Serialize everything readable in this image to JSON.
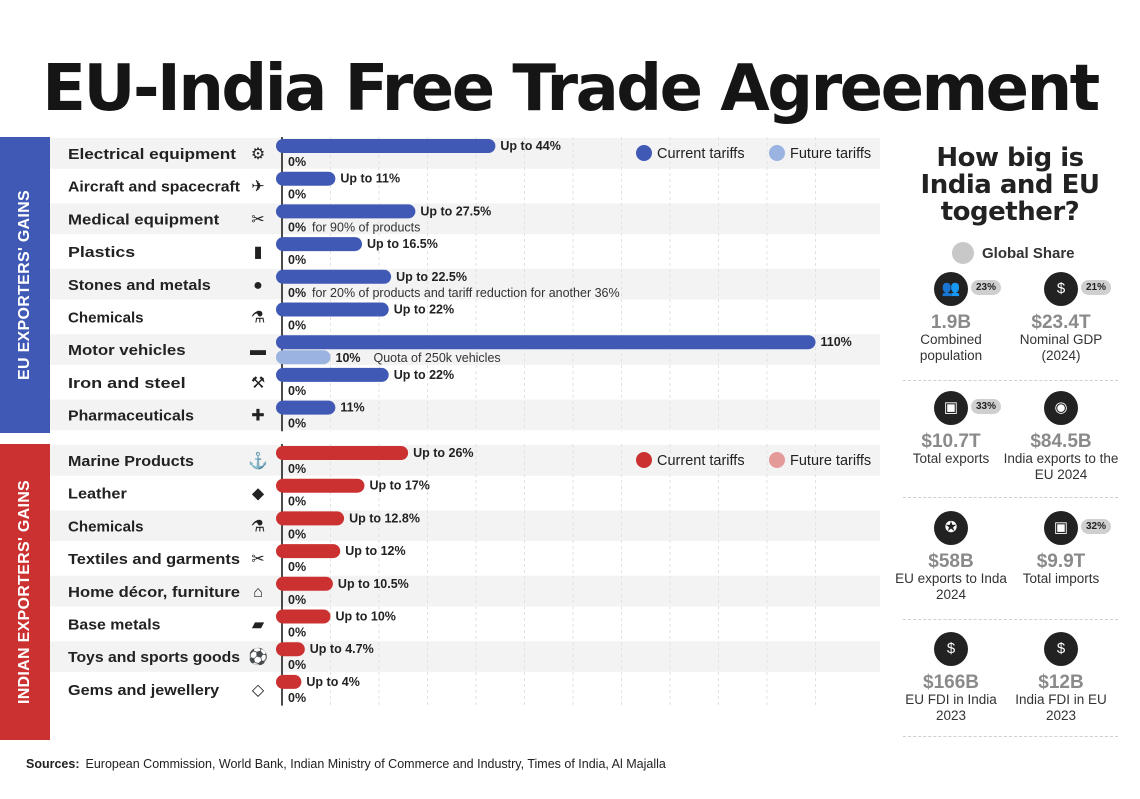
{
  "title": "EU-India Free Trade Agreement",
  "colors": {
    "eu_current": "#4059b5",
    "eu_future": "#9bb3e0",
    "in_current": "#cb3131",
    "in_future": "#e59a9a"
  },
  "chart_data": [
    {
      "type": "bar",
      "group_label": "EU EXPORTERS' GAINS",
      "legend": [
        "Current tariffs",
        "Future tariffs"
      ],
      "categories": [
        "Electrical equipment",
        "Aircraft and spacecraft",
        "Medical  equipment",
        "Plastics",
        "Stones and metals",
        "Chemicals",
        "Motor vehicles",
        "Iron and steel",
        "Pharmaceuticals"
      ],
      "icons": [
        "gear-icon",
        "airplane-icon",
        "medical-tools-icon",
        "plastic-bottle-icon",
        "stone-icon",
        "flask-icon",
        "car-icon",
        "steel-icon",
        "pharma-icon"
      ],
      "series": [
        {
          "name": "Current tariffs",
          "values": [
            44,
            11,
            27.5,
            16.5,
            22.5,
            22,
            110,
            22,
            11
          ],
          "labels": [
            "Up to 44%",
            "Up to 11%",
            "Up to 27.5%",
            "Up to 16.5%",
            "Up to 22.5%",
            "Up to 22%",
            "110%",
            "Up to 22%",
            "11%"
          ]
        },
        {
          "name": "Future tariffs",
          "values": [
            0,
            0,
            0,
            0,
            0,
            0,
            10,
            0,
            0
          ],
          "labels": [
            "0%",
            "0%",
            "0%",
            "0%",
            "0%",
            "0%",
            "10%",
            "0%",
            "0%"
          ],
          "notes": [
            "",
            "",
            "for 90% of products",
            "",
            "for 20% of products and tariff reduction for another 36%",
            "",
            "Quota of 250k vehicles",
            "",
            ""
          ]
        }
      ]
    },
    {
      "type": "bar",
      "group_label": "INDIAN EXPORTERS' GAINS",
      "legend": [
        "Current tariffs",
        "Future tariffs"
      ],
      "categories": [
        "Marine Products",
        "Leather",
        "Chemicals",
        "Textiles and garments",
        "Home décor, furniture",
        "Base metals",
        "Toys and sports goods",
        "Gems and jewellery"
      ],
      "icons": [
        "anchor-icon",
        "leather-hide-icon",
        "flask-icon",
        "scissors-icon",
        "house-icon",
        "metal-bar-icon",
        "toys-icon",
        "diamond-icon"
      ],
      "series": [
        {
          "name": "Current tariffs",
          "values": [
            26,
            17,
            12.8,
            12,
            10.5,
            10,
            4.7,
            4
          ],
          "labels": [
            "Up to 26%",
            "Up to 17%",
            "Up to 12.8%",
            "Up to 12%",
            "Up to 10.5%",
            "Up to 10%",
            "Up to 4.7%",
            "Up to 4%"
          ]
        },
        {
          "name": "Future tariffs",
          "values": [
            0,
            0,
            0,
            0,
            0,
            0,
            0,
            0
          ],
          "labels": [
            "0%",
            "0%",
            "0%",
            "0%",
            "0%",
            "0%",
            "0%",
            "0%"
          ],
          "notes": [
            "",
            "",
            "",
            "",
            "",
            "",
            "",
            ""
          ]
        }
      ]
    }
  ],
  "right_panel": {
    "title": "How big is India and EU together?",
    "legend_label": "Global Share",
    "stats": [
      {
        "value": "1.9B",
        "label": "Combined population",
        "share": "23%",
        "icon": "people-icon"
      },
      {
        "value": "$23.4T",
        "label": "Nominal GDP (2024)",
        "share": "21%",
        "icon": "globe-dollar-icon"
      },
      {
        "value": "$10.7T",
        "label": "Total exports",
        "share": "33%",
        "icon": "box-export-icon"
      },
      {
        "value": "$84.5B",
        "label": "India exports to the EU 2024",
        "share": "",
        "icon": "india-flag-icon"
      },
      {
        "value": "$58B",
        "label": "EU exports to Inda 2024",
        "share": "",
        "icon": "eu-flag-icon"
      },
      {
        "value": "$9.9T",
        "label": "Total imports",
        "share": "32%",
        "icon": "box-import-icon"
      },
      {
        "value": "$166B",
        "label": "EU FDI in India 2023",
        "share": "",
        "icon": "money-bag-icon"
      },
      {
        "value": "$12B",
        "label": "India FDI in EU 2023",
        "share": "",
        "icon": "money-bag-icon"
      }
    ]
  },
  "sources_label": "Sources:",
  "sources": "European Commission, World Bank, Indian Ministry of Commerce and Industry,  Times of India, Al Majalla"
}
